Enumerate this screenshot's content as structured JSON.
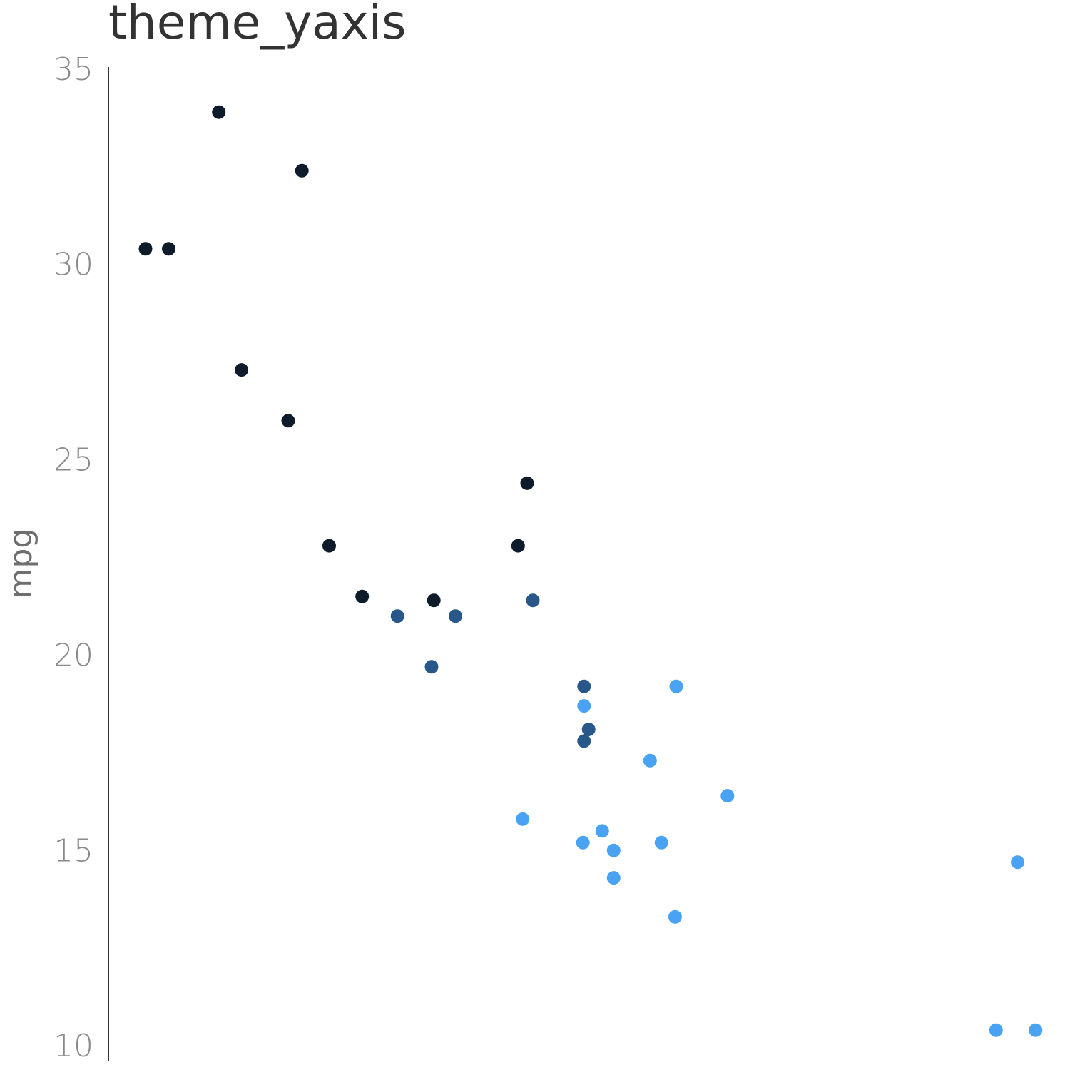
{
  "chart_data": {
    "type": "scatter",
    "title": "theme_yaxis",
    "xlabel": "",
    "ylabel": "mpg",
    "ylim": [
      9.6,
      35.4
    ],
    "xlim": [
      1.35,
      5.55
    ],
    "yticks": [
      10,
      15,
      20,
      25,
      30,
      35
    ],
    "grid": false,
    "legend": "none",
    "colors": {
      "dark": "#0d1b2a",
      "mid": "#28578a",
      "light": "#4aa3f2"
    },
    "points": [
      {
        "x": 1.513,
        "y": 30.4,
        "group": "dark"
      },
      {
        "x": 1.615,
        "y": 30.4,
        "group": "dark"
      },
      {
        "x": 1.835,
        "y": 33.9,
        "group": "dark"
      },
      {
        "x": 1.935,
        "y": 27.3,
        "group": "dark"
      },
      {
        "x": 2.14,
        "y": 26.0,
        "group": "dark"
      },
      {
        "x": 2.2,
        "y": 32.4,
        "group": "dark"
      },
      {
        "x": 2.32,
        "y": 22.8,
        "group": "dark"
      },
      {
        "x": 2.465,
        "y": 21.5,
        "group": "dark"
      },
      {
        "x": 2.78,
        "y": 21.4,
        "group": "dark"
      },
      {
        "x": 3.15,
        "y": 22.8,
        "group": "dark"
      },
      {
        "x": 3.19,
        "y": 24.4,
        "group": "dark"
      },
      {
        "x": 2.62,
        "y": 21.0,
        "group": "mid"
      },
      {
        "x": 2.77,
        "y": 19.7,
        "group": "mid"
      },
      {
        "x": 2.875,
        "y": 21.0,
        "group": "mid"
      },
      {
        "x": 3.215,
        "y": 21.4,
        "group": "mid"
      },
      {
        "x": 3.44,
        "y": 19.2,
        "group": "mid"
      },
      {
        "x": 3.44,
        "y": 17.8,
        "group": "mid"
      },
      {
        "x": 3.46,
        "y": 18.1,
        "group": "mid"
      },
      {
        "x": 3.17,
        "y": 15.8,
        "group": "light"
      },
      {
        "x": 3.435,
        "y": 15.2,
        "group": "light"
      },
      {
        "x": 3.44,
        "y": 18.7,
        "group": "light"
      },
      {
        "x": 3.52,
        "y": 15.5,
        "group": "light"
      },
      {
        "x": 3.57,
        "y": 15.0,
        "group": "light"
      },
      {
        "x": 3.57,
        "y": 14.3,
        "group": "light"
      },
      {
        "x": 3.73,
        "y": 17.3,
        "group": "light"
      },
      {
        "x": 3.78,
        "y": 15.2,
        "group": "light"
      },
      {
        "x": 3.84,
        "y": 13.3,
        "group": "light"
      },
      {
        "x": 3.845,
        "y": 19.2,
        "group": "light"
      },
      {
        "x": 4.07,
        "y": 16.4,
        "group": "light"
      },
      {
        "x": 5.25,
        "y": 10.4,
        "group": "light"
      },
      {
        "x": 5.345,
        "y": 14.7,
        "group": "light"
      },
      {
        "x": 5.424,
        "y": 10.4,
        "group": "light"
      }
    ]
  }
}
